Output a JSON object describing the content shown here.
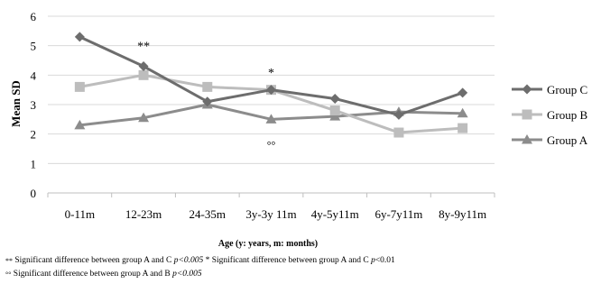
{
  "chart_data": {
    "type": "line",
    "title": "",
    "xlabel": "Age (y: years, m: months)",
    "ylabel": "Mean SD",
    "ylim": [
      0,
      6
    ],
    "yticks": [
      0,
      1,
      2,
      3,
      4,
      5,
      6
    ],
    "grid": true,
    "legend_position": "right",
    "categories": [
      "0-11m",
      "12-23m",
      "24-35m",
      "3y-3y 11m",
      "4y-5y11m",
      "6y-7y11m",
      "8y-9y11m"
    ],
    "series": [
      {
        "name": "Group C",
        "marker": "diamond",
        "color": "#6d6d6d",
        "values": [
          5.3,
          4.3,
          3.1,
          3.5,
          3.2,
          2.65,
          3.4
        ]
      },
      {
        "name": "Group B",
        "marker": "square",
        "color": "#bdbdbd",
        "values": [
          3.6,
          4.0,
          3.6,
          3.5,
          2.8,
          2.05,
          2.2
        ]
      },
      {
        "name": "Group A",
        "marker": "triangle",
        "color": "#8c8c8c",
        "values": [
          2.3,
          2.55,
          3.0,
          2.5,
          2.6,
          2.75,
          2.7
        ]
      }
    ],
    "annotations": [
      {
        "text": "**",
        "category": "12-23m",
        "y": 5.0
      },
      {
        "text": "*",
        "category": "3y-3y 11m",
        "y": 4.1
      },
      {
        "text": "°°",
        "category": "3y-3y 11m",
        "y": 1.65
      }
    ]
  },
  "footnotes": {
    "line1_mark_a": "**",
    "line1_text_a": " Significant difference between group A and C ",
    "line1_p_a": "p<0.005",
    "line1_mark_b": " *",
    "line1_text_b": "   Significant difference between group A and C ",
    "line1_p_b": "p",
    "line1_p_b_val": "<0.01",
    "line2_mark": "°°",
    "line2_text": "  Significant difference between group A and B ",
    "line2_p": "p<0.005"
  }
}
